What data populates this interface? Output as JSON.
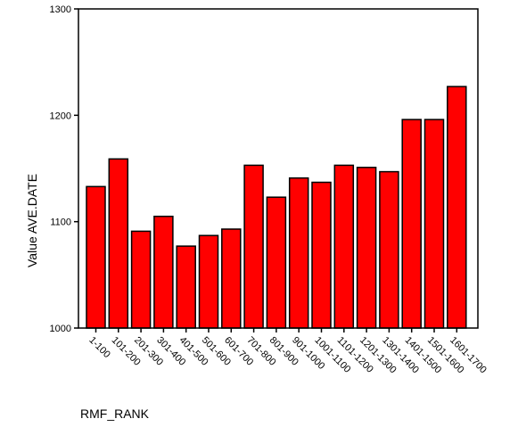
{
  "chart_data": {
    "type": "bar",
    "title": "",
    "xlabel": "RMF_RANK",
    "ylabel": "Value AVE.DATE",
    "ylim": [
      1000,
      1300
    ],
    "yticks": [
      "1000",
      "1100",
      "1200",
      "1300"
    ],
    "grid": false,
    "bar_color": "#ff0000",
    "categories": [
      "1-100",
      "101-200",
      "201-300",
      "301-400",
      "401-500",
      "501-600",
      "601-700",
      "701-800",
      "801-900",
      "901-1000",
      "1001-1100",
      "1101-1200",
      "1201-1300",
      "1301-1400",
      "1401-1500",
      "1501-1600",
      "1601-1700"
    ],
    "values": [
      1133,
      1159,
      1091,
      1105,
      1077,
      1087,
      1093,
      1153,
      1123,
      1141,
      1137,
      1153,
      1151,
      1147,
      1196,
      1196,
      1227
    ]
  }
}
